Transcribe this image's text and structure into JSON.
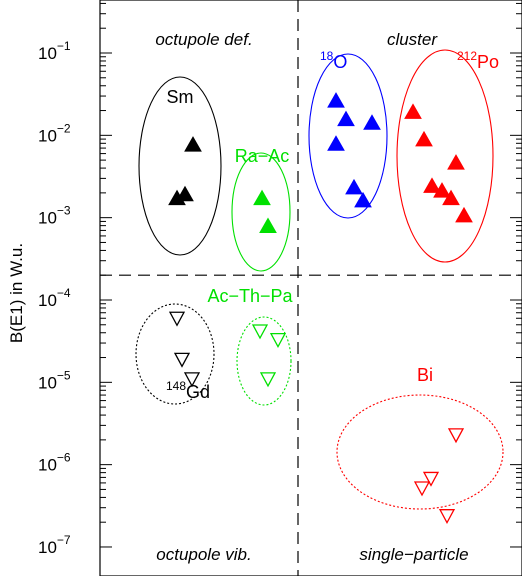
{
  "chart_data": {
    "type": "scatter",
    "ylabel": "B(E1) in W.u.",
    "y_scale": "log",
    "ylim": [
      1e-07,
      0.1
    ],
    "y_ticks": [
      {
        "value": 0.1,
        "base": "10",
        "exp": "−1"
      },
      {
        "value": 0.01,
        "base": "10",
        "exp": "−2"
      },
      {
        "value": 0.001,
        "base": "10",
        "exp": "−3"
      },
      {
        "value": 0.0001,
        "base": "10",
        "exp": "−4"
      },
      {
        "value": 1e-05,
        "base": "10",
        "exp": "−5"
      },
      {
        "value": 1e-06,
        "base": "10",
        "exp": "−6"
      },
      {
        "value": 1e-07,
        "base": "10",
        "exp": "−7"
      }
    ],
    "threshold_y": 0.0002,
    "regions": {
      "top_left": "octupole def.",
      "top_right": "cluster",
      "bottom_left": "octupole vib.",
      "bottom_right": "single−particle"
    },
    "groups": [
      {
        "label": "Sm",
        "sup": "",
        "color": "#000000",
        "marker": "filled-triangle-up",
        "ellipse": "solid",
        "values": [
          0.0076,
          0.0019,
          0.0017
        ]
      },
      {
        "label": "Ra−Ac",
        "sup": "",
        "color": "#00e000",
        "marker": "filled-triangle-up",
        "ellipse": "solid",
        "values": [
          0.0017,
          0.00078
        ]
      },
      {
        "label": "O",
        "sup": "18",
        "color": "#0000ff",
        "marker": "filled-triangle-up",
        "ellipse": "solid",
        "values": [
          0.026,
          0.0155,
          0.014,
          0.0078,
          0.0023,
          0.0016
        ]
      },
      {
        "label": "Po",
        "sup": "212",
        "color": "#ff0000",
        "marker": "filled-triangle-up",
        "ellipse": "solid",
        "values": [
          0.019,
          0.0088,
          0.0046,
          0.0024,
          0.0021,
          0.0017,
          0.00105
        ]
      },
      {
        "label": "Gd",
        "sup": "148",
        "color": "#000000",
        "marker": "open-triangle-down",
        "ellipse": "dotted",
        "values": [
          6e-05,
          1.9e-05,
          1.1e-05
        ]
      },
      {
        "label": "Ac−Th−Pa",
        "sup": "",
        "color": "#00e000",
        "marker": "open-triangle-down",
        "ellipse": "dotted",
        "values": [
          4.2e-05,
          3.3e-05,
          1.1e-05
        ]
      },
      {
        "label": "Bi",
        "sup": "",
        "color": "#ff0000",
        "marker": "open-triangle-down",
        "ellipse": "dotted",
        "values": [
          2.3e-06,
          6.8e-07,
          5.2e-07,
          2.4e-07
        ]
      }
    ]
  }
}
